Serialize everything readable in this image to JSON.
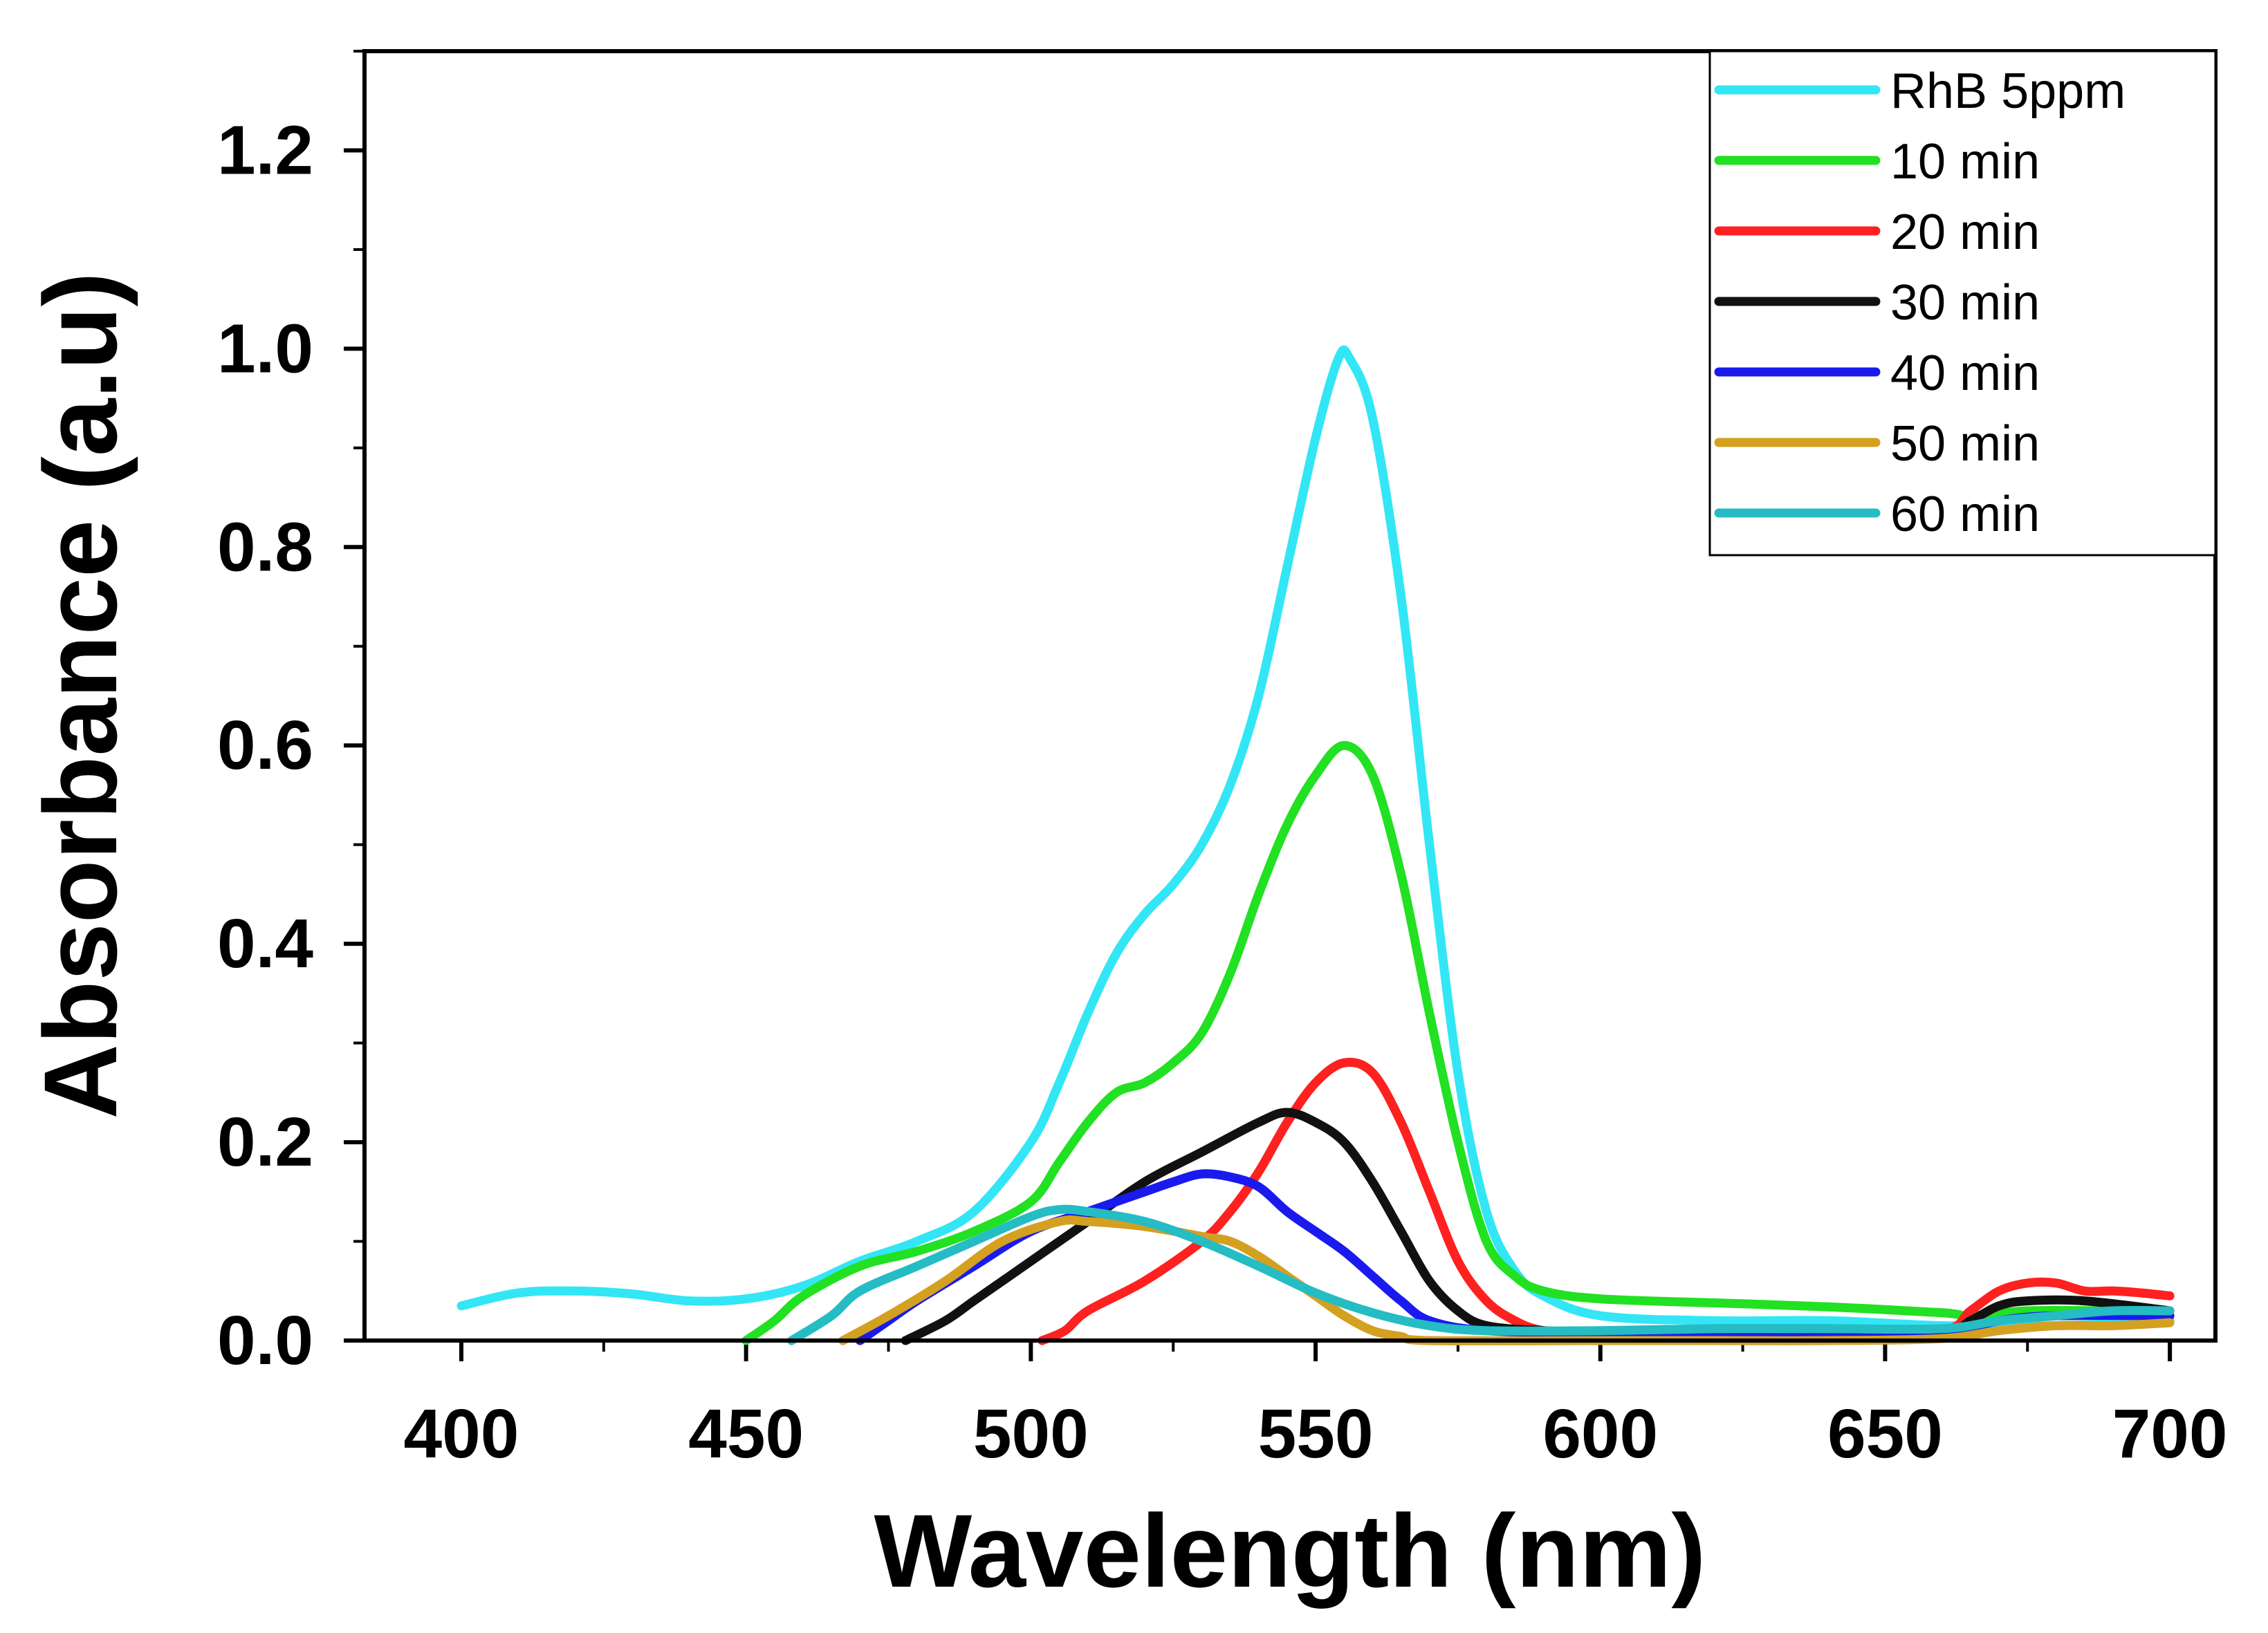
{
  "chart_data": {
    "type": "line",
    "title": "",
    "xlabel": "Wavelength (nm)",
    "ylabel": "Absorbance (a.u)",
    "xlim": [
      383,
      708
    ],
    "ylim": [
      0,
      1.3
    ],
    "xticks": [
      400,
      450,
      500,
      550,
      600,
      650,
      700
    ],
    "xtick_labels": [
      "400",
      "450",
      "500",
      "550",
      "600",
      "650",
      "700"
    ],
    "yticks": [
      0,
      0.2,
      0.4,
      0.6,
      0.8,
      1.0,
      1.2
    ],
    "ytick_labels": [
      "0.0",
      "0.2",
      "0.4",
      "0.6",
      "0.8",
      "1.0",
      "1.2"
    ],
    "legend_position": "top-right",
    "series": [
      {
        "name": "RhB 5ppm",
        "color": "#33e6f5",
        "points": [
          [
            400,
            0.035
          ],
          [
            410,
            0.048
          ],
          [
            420,
            0.05
          ],
          [
            430,
            0.047
          ],
          [
            440,
            0.04
          ],
          [
            450,
            0.042
          ],
          [
            460,
            0.055
          ],
          [
            470,
            0.08
          ],
          [
            480,
            0.1
          ],
          [
            490,
            0.13
          ],
          [
            500,
            0.2
          ],
          [
            505,
            0.26
          ],
          [
            510,
            0.33
          ],
          [
            515,
            0.39
          ],
          [
            520,
            0.43
          ],
          [
            525,
            0.46
          ],
          [
            530,
            0.5
          ],
          [
            535,
            0.56
          ],
          [
            540,
            0.65
          ],
          [
            545,
            0.78
          ],
          [
            550,
            0.91
          ],
          [
            554,
            0.99
          ],
          [
            556,
            0.99
          ],
          [
            560,
            0.93
          ],
          [
            565,
            0.75
          ],
          [
            570,
            0.5
          ],
          [
            575,
            0.27
          ],
          [
            580,
            0.13
          ],
          [
            585,
            0.07
          ],
          [
            590,
            0.045
          ],
          [
            600,
            0.025
          ],
          [
            620,
            0.02
          ],
          [
            640,
            0.02
          ],
          [
            660,
            0.015
          ],
          [
            680,
            0.015
          ],
          [
            700,
            0.02
          ]
        ]
      },
      {
        "name": "10 min",
        "color": "#22e022",
        "points": [
          [
            450,
            0.0
          ],
          [
            455,
            0.02
          ],
          [
            460,
            0.045
          ],
          [
            470,
            0.075
          ],
          [
            480,
            0.09
          ],
          [
            490,
            0.11
          ],
          [
            500,
            0.14
          ],
          [
            505,
            0.18
          ],
          [
            510,
            0.22
          ],
          [
            515,
            0.25
          ],
          [
            520,
            0.26
          ],
          [
            525,
            0.28
          ],
          [
            530,
            0.31
          ],
          [
            535,
            0.37
          ],
          [
            540,
            0.45
          ],
          [
            545,
            0.52
          ],
          [
            550,
            0.57
          ],
          [
            555,
            0.6
          ],
          [
            560,
            0.57
          ],
          [
            565,
            0.47
          ],
          [
            570,
            0.33
          ],
          [
            575,
            0.2
          ],
          [
            580,
            0.1
          ],
          [
            585,
            0.065
          ],
          [
            590,
            0.05
          ],
          [
            600,
            0.042
          ],
          [
            620,
            0.038
          ],
          [
            640,
            0.034
          ],
          [
            660,
            0.028
          ],
          [
            665,
            0.025
          ],
          [
            675,
            0.03
          ],
          [
            690,
            0.03
          ],
          [
            700,
            0.03
          ]
        ]
      },
      {
        "name": "20 min",
        "color": "#ff2020",
        "points": [
          [
            502,
            0.0
          ],
          [
            506,
            0.01
          ],
          [
            510,
            0.03
          ],
          [
            520,
            0.06
          ],
          [
            530,
            0.1
          ],
          [
            535,
            0.13
          ],
          [
            540,
            0.17
          ],
          [
            545,
            0.22
          ],
          [
            550,
            0.26
          ],
          [
            555,
            0.28
          ],
          [
            560,
            0.27
          ],
          [
            565,
            0.22
          ],
          [
            570,
            0.15
          ],
          [
            575,
            0.08
          ],
          [
            580,
            0.04
          ],
          [
            585,
            0.02
          ],
          [
            590,
            0.01
          ],
          [
            600,
            0.005
          ],
          [
            620,
            0.005
          ],
          [
            640,
            0.005
          ],
          [
            660,
            0.01
          ],
          [
            665,
            0.03
          ],
          [
            670,
            0.05
          ],
          [
            675,
            0.058
          ],
          [
            680,
            0.058
          ],
          [
            685,
            0.05
          ],
          [
            690,
            0.05
          ],
          [
            695,
            0.048
          ],
          [
            700,
            0.045
          ]
        ]
      },
      {
        "name": "30 min",
        "color": "#111111",
        "points": [
          [
            478,
            0.0
          ],
          [
            485,
            0.02
          ],
          [
            490,
            0.04
          ],
          [
            500,
            0.08
          ],
          [
            510,
            0.12
          ],
          [
            520,
            0.16
          ],
          [
            530,
            0.19
          ],
          [
            540,
            0.22
          ],
          [
            545,
            0.23
          ],
          [
            550,
            0.22
          ],
          [
            555,
            0.2
          ],
          [
            560,
            0.16
          ],
          [
            565,
            0.11
          ],
          [
            570,
            0.06
          ],
          [
            575,
            0.03
          ],
          [
            580,
            0.015
          ],
          [
            590,
            0.01
          ],
          [
            600,
            0.008
          ],
          [
            620,
            0.008
          ],
          [
            640,
            0.008
          ],
          [
            660,
            0.008
          ],
          [
            665,
            0.02
          ],
          [
            670,
            0.035
          ],
          [
            675,
            0.04
          ],
          [
            685,
            0.04
          ],
          [
            700,
            0.03
          ]
        ]
      },
      {
        "name": "40 min",
        "color": "#1a1aee",
        "points": [
          [
            470,
            0.0
          ],
          [
            475,
            0.02
          ],
          [
            480,
            0.04
          ],
          [
            490,
            0.075
          ],
          [
            500,
            0.11
          ],
          [
            510,
            0.13
          ],
          [
            520,
            0.15
          ],
          [
            525,
            0.16
          ],
          [
            530,
            0.168
          ],
          [
            535,
            0.165
          ],
          [
            540,
            0.155
          ],
          [
            545,
            0.13
          ],
          [
            550,
            0.11
          ],
          [
            555,
            0.09
          ],
          [
            560,
            0.065
          ],
          [
            565,
            0.04
          ],
          [
            570,
            0.02
          ],
          [
            580,
            0.01
          ],
          [
            600,
            0.008
          ],
          [
            620,
            0.008
          ],
          [
            640,
            0.008
          ],
          [
            660,
            0.008
          ],
          [
            670,
            0.02
          ],
          [
            680,
            0.025
          ],
          [
            700,
            0.025
          ]
        ]
      },
      {
        "name": "50 min",
        "color": "#d4a020",
        "points": [
          [
            467,
            0.0
          ],
          [
            475,
            0.025
          ],
          [
            485,
            0.06
          ],
          [
            495,
            0.1
          ],
          [
            505,
            0.12
          ],
          [
            510,
            0.12
          ],
          [
            520,
            0.115
          ],
          [
            530,
            0.105
          ],
          [
            535,
            0.1
          ],
          [
            540,
            0.085
          ],
          [
            545,
            0.065
          ],
          [
            550,
            0.045
          ],
          [
            555,
            0.025
          ],
          [
            560,
            0.01
          ],
          [
            565,
            0.004
          ],
          [
            570,
            0.0
          ],
          [
            600,
            0.0
          ],
          [
            620,
            0.0
          ],
          [
            640,
            0.0
          ],
          [
            660,
            0.002
          ],
          [
            670,
            0.01
          ],
          [
            680,
            0.015
          ],
          [
            690,
            0.015
          ],
          [
            700,
            0.018
          ]
        ]
      },
      {
        "name": "60 min",
        "color": "#25bcc4",
        "points": [
          [
            458,
            0.0
          ],
          [
            465,
            0.025
          ],
          [
            470,
            0.05
          ],
          [
            480,
            0.075
          ],
          [
            490,
            0.1
          ],
          [
            500,
            0.125
          ],
          [
            505,
            0.132
          ],
          [
            510,
            0.13
          ],
          [
            520,
            0.12
          ],
          [
            530,
            0.1
          ],
          [
            540,
            0.075
          ],
          [
            550,
            0.048
          ],
          [
            560,
            0.028
          ],
          [
            570,
            0.015
          ],
          [
            580,
            0.01
          ],
          [
            600,
            0.01
          ],
          [
            620,
            0.012
          ],
          [
            640,
            0.012
          ],
          [
            660,
            0.012
          ],
          [
            670,
            0.02
          ],
          [
            680,
            0.025
          ],
          [
            690,
            0.03
          ],
          [
            700,
            0.03
          ]
        ]
      }
    ]
  }
}
